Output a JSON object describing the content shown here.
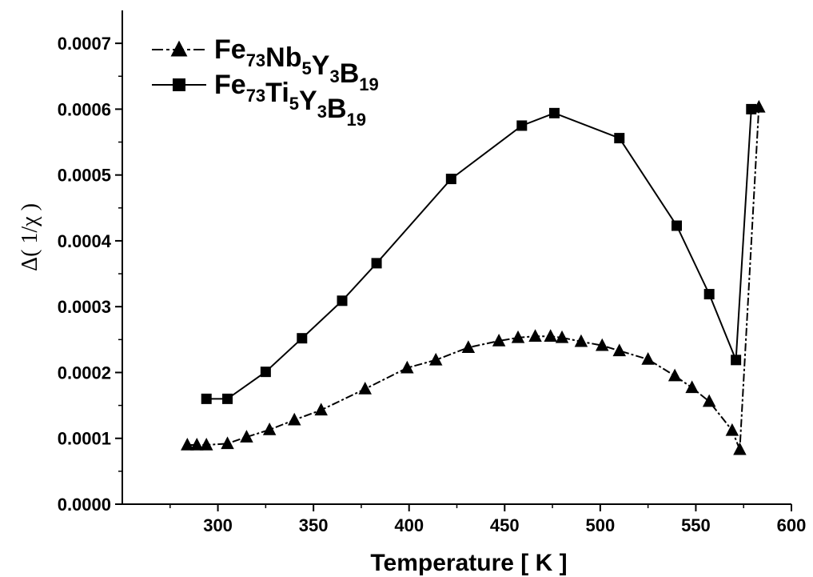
{
  "chart_data": {
    "type": "line",
    "xlabel": "Temperature [ K ]",
    "ylabel": "Δ( 1/χ )",
    "xlim": [
      250,
      600
    ],
    "ylim": [
      0,
      0.00075
    ],
    "x_ticks": [
      300,
      350,
      400,
      450,
      500,
      550,
      600
    ],
    "x_tick_labels": [
      "300",
      "350",
      "400",
      "450",
      "500",
      "550",
      "600"
    ],
    "y_ticks": [
      0,
      0.0001,
      0.0002,
      0.0003,
      0.0004,
      0.0005,
      0.0006,
      0.0007
    ],
    "y_tick_labels": [
      "0.0000",
      "0.0001",
      "0.0002",
      "0.0003",
      "0.0004",
      "0.0005",
      "0.0006",
      "0.0007"
    ],
    "grid": false,
    "legend_position": "top-left",
    "series": [
      {
        "name": "Fe73Nb5Y3B19",
        "legend_parts": [
          {
            "t": "Fe",
            "sub": false
          },
          {
            "t": "73",
            "sub": true
          },
          {
            "t": "Nb",
            "sub": false
          },
          {
            "t": "5",
            "sub": true
          },
          {
            "t": "Y",
            "sub": false
          },
          {
            "t": "3",
            "sub": true
          },
          {
            "t": "B",
            "sub": false
          },
          {
            "t": "19",
            "sub": true
          }
        ],
        "marker": "triangle",
        "line_style": "dash-dot",
        "color": "#000000",
        "points": [
          [
            284,
            9e-05
          ],
          [
            289,
            9e-05
          ],
          [
            294,
            9e-05
          ],
          [
            305,
            9.2e-05
          ],
          [
            315,
            0.000102
          ],
          [
            327,
            0.000113
          ],
          [
            340,
            0.000128
          ],
          [
            354,
            0.000143
          ],
          [
            377,
            0.000175
          ],
          [
            399,
            0.000207
          ],
          [
            414,
            0.000219
          ],
          [
            431,
            0.000238
          ],
          [
            447,
            0.000248
          ],
          [
            457,
            0.000253
          ],
          [
            466,
            0.000255
          ],
          [
            474,
            0.000255
          ],
          [
            480,
            0.000253
          ],
          [
            490,
            0.000247
          ],
          [
            501,
            0.000241
          ],
          [
            510,
            0.000233
          ],
          [
            525,
            0.00022
          ],
          [
            539,
            0.000195
          ],
          [
            548,
            0.000177
          ],
          [
            557,
            0.000156
          ],
          [
            569,
            0.000112
          ],
          [
            573,
            8.3e-05
          ],
          [
            583,
            0.000603
          ]
        ]
      },
      {
        "name": "Fe73Ti5Y3B19",
        "legend_parts": [
          {
            "t": "Fe",
            "sub": false
          },
          {
            "t": "73",
            "sub": true
          },
          {
            "t": "Ti",
            "sub": false
          },
          {
            "t": "5",
            "sub": true
          },
          {
            "t": "Y",
            "sub": false
          },
          {
            "t": "3",
            "sub": true
          },
          {
            "t": "B",
            "sub": false
          },
          {
            "t": "19",
            "sub": true
          }
        ],
        "marker": "square",
        "line_style": "solid",
        "color": "#000000",
        "points": [
          [
            294,
            0.00016
          ],
          [
            305,
            0.00016
          ],
          [
            325,
            0.000201
          ],
          [
            344,
            0.000252
          ],
          [
            365,
            0.000309
          ],
          [
            383,
            0.000366
          ],
          [
            422,
            0.000494
          ],
          [
            459,
            0.000575
          ],
          [
            476,
            0.000594
          ],
          [
            510,
            0.000556
          ],
          [
            540,
            0.000423
          ],
          [
            557,
            0.000319
          ],
          [
            571,
            0.000219
          ],
          [
            579,
            0.0006
          ]
        ]
      }
    ]
  }
}
